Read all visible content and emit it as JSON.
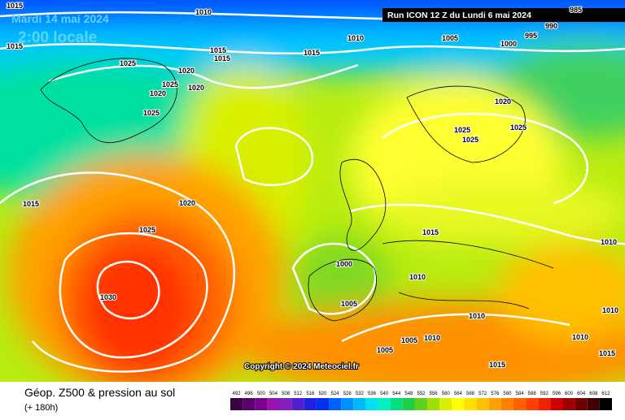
{
  "header": {
    "date": "Mardi 14 mai 2024",
    "time": "2:00 locale",
    "run": "Run ICON 12 Z du Lundi 6 mai 2024"
  },
  "footer": {
    "title": "Géop. Z500 & pression au sol",
    "subtitle": "(+ 180h)",
    "copyright": "Copyright © 2024 Meteociel.fr"
  },
  "isobar_labels": [
    "1015",
    "1010",
    "1010",
    "1005",
    "1000",
    "995",
    "990",
    "985",
    "1015",
    "1025",
    "1015",
    "1015",
    "1015",
    "1020",
    "1025",
    "1020",
    "1020",
    "1025",
    "1020",
    "1025",
    "1025",
    "1025",
    "1015",
    "1020",
    "1025",
    "1015",
    "1010",
    "1000",
    "1010",
    "1030",
    "1005",
    "1010",
    "1010",
    "1005",
    "1010",
    "1010",
    "1005",
    "1015",
    "1015"
  ],
  "legend": {
    "values": [
      492,
      496,
      500,
      504,
      508,
      512,
      516,
      520,
      524,
      528,
      532,
      536,
      540,
      544,
      548,
      552,
      556,
      560,
      564,
      568,
      572,
      576,
      580,
      584,
      588,
      592,
      596,
      600,
      604,
      608,
      612
    ],
    "colors": [
      "#3a0040",
      "#5a006a",
      "#7a0090",
      "#9a10b0",
      "#8020c0",
      "#5020d0",
      "#2020e0",
      "#0030f0",
      "#0060ff",
      "#0090ff",
      "#00b8ff",
      "#00e0f0",
      "#00f0c0",
      "#00e080",
      "#20d040",
      "#60d020",
      "#a0e000",
      "#d8f000",
      "#ffff00",
      "#ffe000",
      "#ffc000",
      "#ffa000",
      "#ff8000",
      "#ff6000",
      "#ff4000",
      "#f02000",
      "#d00000",
      "#a00000",
      "#700000",
      "#400000",
      "#000000"
    ]
  }
}
